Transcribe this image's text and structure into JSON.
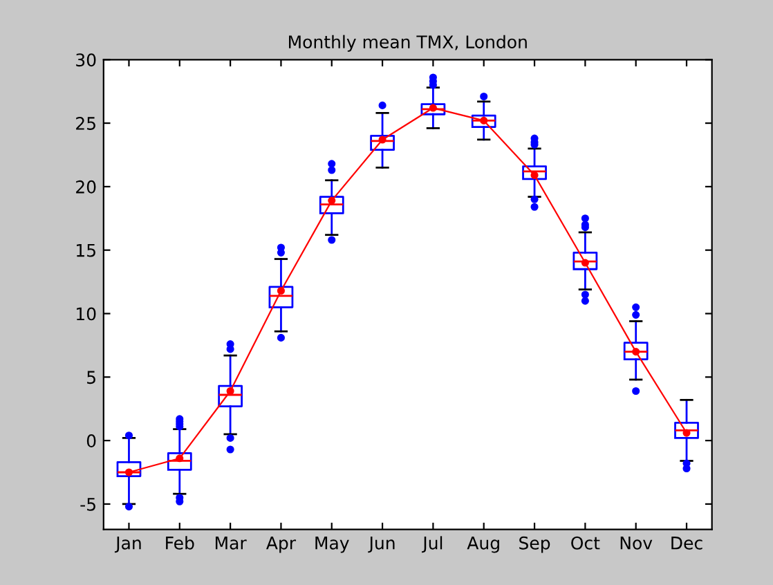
{
  "chart_data": {
    "type": "box",
    "title": "Monthly mean TMX, London",
    "categories": [
      "Jan",
      "Feb",
      "Mar",
      "Apr",
      "May",
      "Jun",
      "Jul",
      "Aug",
      "Sep",
      "Oct",
      "Nov",
      "Dec"
    ],
    "ylim": [
      -7,
      30
    ],
    "yticks": [
      -5,
      0,
      5,
      10,
      15,
      20,
      25,
      30
    ],
    "grid": false,
    "legend": false,
    "marker": "circle",
    "line_style": "solid",
    "series": [
      {
        "color": "#0000ff",
        "boxes": [
          {
            "low": -5.0,
            "q1": -2.8,
            "median": -2.5,
            "q3": -1.7,
            "high": 0.2,
            "outliers": [
              0.4,
              -5.2
            ]
          },
          {
            "low": -4.2,
            "q1": -2.3,
            "median": -1.6,
            "q3": -1.0,
            "high": 0.9,
            "outliers": [
              1.1,
              1.3,
              1.5,
              1.7,
              -4.5,
              -4.8
            ]
          },
          {
            "low": 0.5,
            "q1": 2.7,
            "median": 3.6,
            "q3": 4.3,
            "high": 6.7,
            "outliers": [
              7.2,
              7.6,
              0.2,
              -0.7
            ]
          },
          {
            "low": 8.6,
            "q1": 10.5,
            "median": 11.4,
            "q3": 12.1,
            "high": 14.3,
            "outliers": [
              14.8,
              15.2,
              8.1
            ]
          },
          {
            "low": 16.2,
            "q1": 17.9,
            "median": 18.6,
            "q3": 19.2,
            "high": 20.5,
            "outliers": [
              21.3,
              21.8,
              15.8
            ]
          },
          {
            "low": 21.5,
            "q1": 22.9,
            "median": 23.6,
            "q3": 24.0,
            "high": 25.8,
            "outliers": [
              26.4
            ]
          },
          {
            "low": 24.6,
            "q1": 25.7,
            "median": 26.1,
            "q3": 26.5,
            "high": 27.8,
            "outliers": [
              28.0,
              28.3,
              28.6
            ]
          },
          {
            "low": 23.7,
            "q1": 24.7,
            "median": 25.2,
            "q3": 25.6,
            "high": 26.7,
            "outliers": [
              27.1
            ]
          },
          {
            "low": 19.2,
            "q1": 20.6,
            "median": 21.2,
            "q3": 21.6,
            "high": 23.0,
            "outliers": [
              23.3,
              23.5,
              23.8,
              19.0,
              18.4
            ]
          },
          {
            "low": 11.9,
            "q1": 13.5,
            "median": 14.1,
            "q3": 14.8,
            "high": 16.4,
            "outliers": [
              16.8,
              17.0,
              17.5,
              11.5,
              11.0
            ]
          },
          {
            "low": 4.8,
            "q1": 6.4,
            "median": 7.0,
            "q3": 7.7,
            "high": 9.4,
            "outliers": [
              9.9,
              10.5,
              3.9
            ]
          },
          {
            "low": -1.6,
            "q1": 0.2,
            "median": 0.8,
            "q3": 1.4,
            "high": 3.2,
            "outliers": [
              -1.8,
              -2.2
            ]
          }
        ]
      },
      {
        "type": "line",
        "color": "#ff0000",
        "values": [
          -2.5,
          -1.4,
          3.9,
          11.8,
          18.9,
          23.7,
          26.2,
          25.2,
          20.9,
          14.0,
          7.0,
          0.6
        ]
      }
    ]
  }
}
